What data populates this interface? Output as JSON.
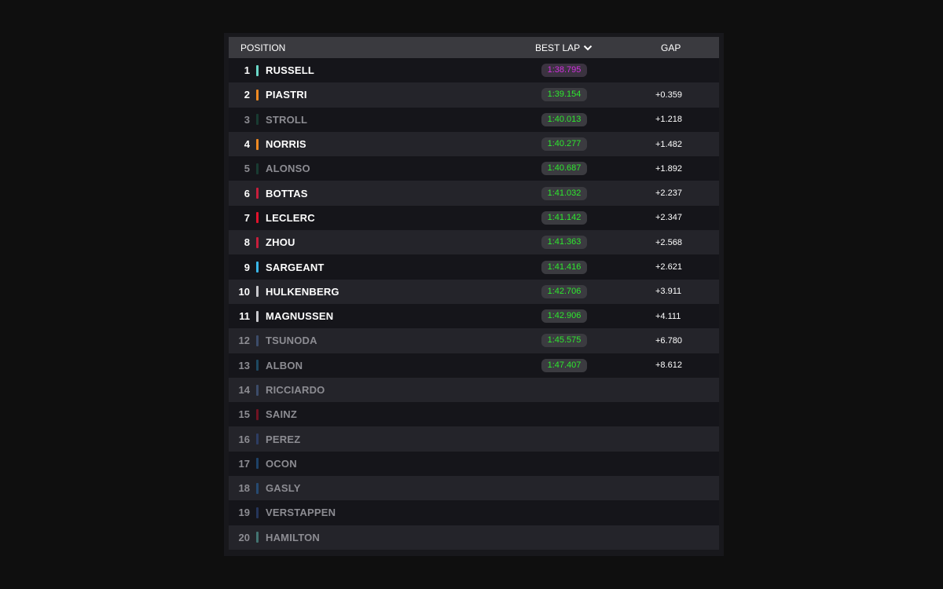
{
  "header": {
    "position": "POSITION",
    "best_lap": "BEST LAP",
    "gap": "GAP"
  },
  "rows": [
    {
      "pos": "1",
      "name": "RUSSELL",
      "lap": "1:38.795",
      "gap": "",
      "team_color": "#6ad8c8",
      "fastest": true,
      "dim": false
    },
    {
      "pos": "2",
      "name": "PIASTRI",
      "lap": "1:39.154",
      "gap": "+0.359",
      "team_color": "#f08a22",
      "fastest": false,
      "dim": false
    },
    {
      "pos": "3",
      "name": "STROLL",
      "lap": "1:40.013",
      "gap": "+1.218",
      "team_color": "#1f6b4f",
      "fastest": false,
      "dim": true
    },
    {
      "pos": "4",
      "name": "NORRIS",
      "lap": "1:40.277",
      "gap": "+1.482",
      "team_color": "#f08a22",
      "fastest": false,
      "dim": false
    },
    {
      "pos": "5",
      "name": "ALONSO",
      "lap": "1:40.687",
      "gap": "+1.892",
      "team_color": "#1f6b4f",
      "fastest": false,
      "dim": true
    },
    {
      "pos": "6",
      "name": "BOTTAS",
      "lap": "1:41.032",
      "gap": "+2.237",
      "team_color": "#c81e3c",
      "fastest": false,
      "dim": false
    },
    {
      "pos": "7",
      "name": "LECLERC",
      "lap": "1:41.142",
      "gap": "+2.347",
      "team_color": "#e3122c",
      "fastest": false,
      "dim": false
    },
    {
      "pos": "8",
      "name": "ZHOU",
      "lap": "1:41.363",
      "gap": "+2.568",
      "team_color": "#c81e3c",
      "fastest": false,
      "dim": false
    },
    {
      "pos": "9",
      "name": "SARGEANT",
      "lap": "1:41.416",
      "gap": "+2.621",
      "team_color": "#3ab6e8",
      "fastest": false,
      "dim": false
    },
    {
      "pos": "10",
      "name": "HULKENBERG",
      "lap": "1:42.706",
      "gap": "+3.911",
      "team_color": "#c8c8cc",
      "fastest": false,
      "dim": false
    },
    {
      "pos": "11",
      "name": "MAGNUSSEN",
      "lap": "1:42.906",
      "gap": "+4.111",
      "team_color": "#c8c8cc",
      "fastest": false,
      "dim": false
    },
    {
      "pos": "12",
      "name": "TSUNODA",
      "lap": "1:45.575",
      "gap": "+6.780",
      "team_color": "#5b7fb8",
      "fastest": false,
      "dim": true
    },
    {
      "pos": "13",
      "name": "ALBON",
      "lap": "1:47.407",
      "gap": "+8.612",
      "team_color": "#2a8ab8",
      "fastest": false,
      "dim": true
    },
    {
      "pos": "14",
      "name": "RICCIARDO",
      "lap": "",
      "gap": "",
      "team_color": "#5b7fb8",
      "fastest": false,
      "dim": true
    },
    {
      "pos": "15",
      "name": "SAINZ",
      "lap": "",
      "gap": "",
      "team_color": "#e3122c",
      "fastest": false,
      "dim": true
    },
    {
      "pos": "16",
      "name": "PEREZ",
      "lap": "",
      "gap": "",
      "team_color": "#3a5ea8",
      "fastest": false,
      "dim": true
    },
    {
      "pos": "17",
      "name": "OCON",
      "lap": "",
      "gap": "",
      "team_color": "#2a7ac8",
      "fastest": false,
      "dim": true
    },
    {
      "pos": "18",
      "name": "GASLY",
      "lap": "",
      "gap": "",
      "team_color": "#2a7ac8",
      "fastest": false,
      "dim": true
    },
    {
      "pos": "19",
      "name": "VERSTAPPEN",
      "lap": "",
      "gap": "",
      "team_color": "#3a5ea8",
      "fastest": false,
      "dim": true
    },
    {
      "pos": "20",
      "name": "HAMILTON",
      "lap": "",
      "gap": "",
      "team_color": "#6ad8c8",
      "fastest": false,
      "dim": true
    }
  ],
  "icons": {
    "sort": "chevron-down-icon"
  }
}
